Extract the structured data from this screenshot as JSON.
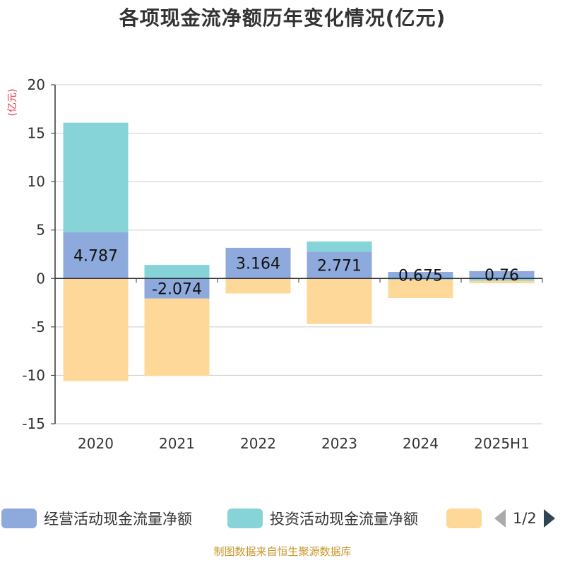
{
  "chart_data": {
    "type": "bar",
    "stacked": true,
    "title": "各项现金流净额历年变化情况(亿元)",
    "ylabel": "(亿元)",
    "ylim": [
      -15,
      20
    ],
    "yticks": [
      20,
      15,
      10,
      5,
      0,
      -5,
      -10,
      -15
    ],
    "grid": true,
    "categories": [
      "2020",
      "2021",
      "2022",
      "2023",
      "2024",
      "2025H1"
    ],
    "series": [
      {
        "name": "经营活动现金流量净额",
        "color": "#8eaadc",
        "values": [
          4.787,
          -2.074,
          3.164,
          2.771,
          0.675,
          0.76
        ],
        "labels": [
          "4.787",
          "-2.074",
          "3.164",
          "2.771",
          "0.675",
          "0.76"
        ]
      },
      {
        "name": "投资活动现金流量净额",
        "color": "#86d4d8",
        "values": [
          11.3,
          1.4,
          0.0,
          1.05,
          -0.12,
          -0.25
        ]
      },
      {
        "name": "",
        "color": "#fed898",
        "values": [
          -10.6,
          -8.0,
          -1.55,
          -4.7,
          -1.9,
          -0.25
        ]
      }
    ],
    "legend_position": "bottom"
  },
  "legend": {
    "items": [
      "经营活动现金流量净额",
      "投资活动现金流量净额",
      ""
    ],
    "page": "1/2"
  },
  "source": "制图数据来自恒生聚源数据库"
}
